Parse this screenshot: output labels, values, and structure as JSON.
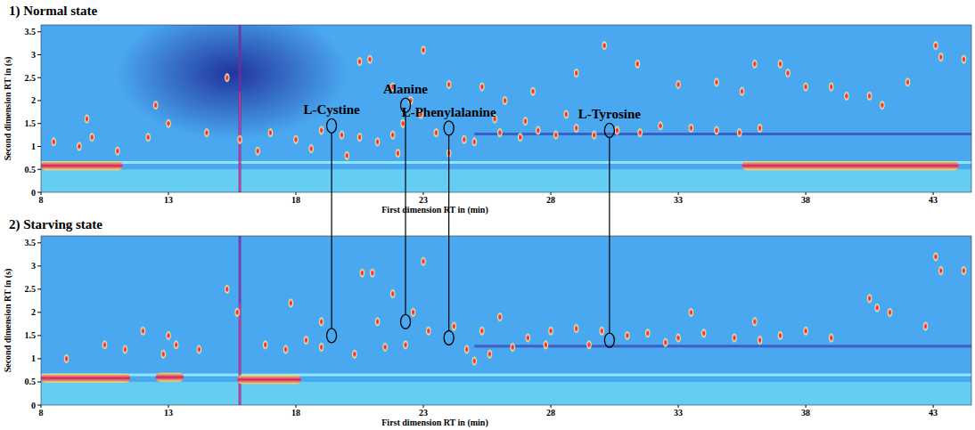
{
  "chart_data": [
    {
      "type": "scatter",
      "title": "1) Normal state",
      "x_label": "First dimension RT in (min)",
      "y_label": "Second dimension RT in (s)",
      "xlim": [
        8,
        44.5
      ],
      "xticks": [
        8,
        13,
        18,
        23,
        28,
        33,
        38,
        43
      ],
      "ylim": [
        0,
        3.65
      ],
      "yticks": [
        0,
        0.5,
        1,
        1.5,
        2,
        2.5,
        3,
        3.5
      ],
      "x": [
        20.5,
        20.9,
        23.0,
        21.8,
        22.5,
        22.9,
        24.0,
        25.3,
        26.2,
        27.3,
        29.0,
        30.1,
        31.4,
        33.0,
        34.5,
        35.5,
        36.2,
        37.3,
        38.0,
        39.0,
        39.6,
        40.5,
        41.0,
        43.1,
        43.3,
        44.2,
        42.0,
        13.0,
        12.5,
        12.2,
        14.5,
        15.3,
        15.8,
        17.0,
        18.0,
        19.0,
        19.8,
        20.5,
        21.2,
        21.8,
        23.5,
        24.6,
        25.0,
        26.0,
        26.8,
        27.5,
        28.2,
        29.0,
        29.7,
        30.6,
        31.5,
        32.3,
        33.5,
        34.5,
        35.4,
        10.0,
        9.5,
        11.0,
        8.5,
        9.8,
        16.5,
        18.6,
        20.0,
        22.0,
        24.0,
        27.0,
        22.2,
        25.8,
        28.6,
        36.0,
        37.0
      ],
      "values": [
        2.85,
        2.9,
        3.1,
        2.3,
        2.0,
        1.7,
        2.35,
        2.3,
        2.0,
        2.2,
        2.6,
        3.2,
        2.8,
        2.35,
        2.4,
        2.2,
        1.4,
        2.6,
        2.3,
        2.3,
        2.1,
        2.1,
        1.9,
        3.2,
        2.95,
        2.9,
        2.4,
        1.5,
        1.9,
        1.2,
        1.3,
        2.5,
        1.15,
        1.3,
        1.15,
        1.35,
        1.25,
        1.2,
        1.1,
        1.25,
        1.3,
        1.15,
        1.1,
        1.3,
        1.2,
        1.35,
        1.25,
        1.4,
        1.25,
        1.35,
        1.3,
        1.45,
        1.4,
        1.35,
        1.3,
        1.2,
        1.0,
        0.9,
        1.1,
        1.6,
        0.9,
        0.95,
        0.8,
        0.85,
        0.85,
        1.55,
        1.5,
        1.6,
        1.7,
        2.8,
        2.8
      ],
      "bands": [
        {
          "x": [
            8,
            11.2
          ],
          "y": 0.58
        },
        {
          "x": [
            35.5,
            44
          ],
          "y": 0.58
        }
      ],
      "streaks": [
        15.8
      ],
      "annotations": [
        {
          "label": "L-Cystine",
          "x": 19.4,
          "y": 1.45
        },
        {
          "label": "Alanine",
          "x": 22.3,
          "y": 1.9
        },
        {
          "label": "L-Phenylalanine",
          "x": 24.0,
          "y": 1.4
        },
        {
          "label": "L-Tyrosine",
          "x": 30.3,
          "y": 1.35
        }
      ]
    },
    {
      "type": "scatter",
      "title": "2) Starving state",
      "x_label": "First dimension RT in (min)",
      "y_label": "Second dimension RT in (s)",
      "xlim": [
        8,
        44.5
      ],
      "xticks": [
        8,
        13,
        18,
        23,
        28,
        33,
        38,
        43
      ],
      "ylim": [
        0,
        3.65
      ],
      "yticks": [
        0,
        0.5,
        1,
        1.5,
        2,
        2.5,
        3,
        3.5
      ],
      "x": [
        20.6,
        21.0,
        23.0,
        21.8,
        22.6,
        23.2,
        24.2,
        25.3,
        26.0,
        27.1,
        28.0,
        29.0,
        30.0,
        31.0,
        31.8,
        33.0,
        34.0,
        35.2,
        36.2,
        37.0,
        38.0,
        39.0,
        40.5,
        40.8,
        41.3,
        42.7,
        43.1,
        43.3,
        44.2,
        15.3,
        15.7,
        13.0,
        13.3,
        12.8,
        14.2,
        16.8,
        17.6,
        18.4,
        19.0,
        20.3,
        21.5,
        22.3,
        24.7,
        25.0,
        25.6,
        26.5,
        27.8,
        29.5,
        32.5,
        9.0,
        10.5,
        11.3,
        12.0,
        17.8,
        19.0,
        21.2,
        33.5,
        36.0
      ],
      "values": [
        2.85,
        2.85,
        3.1,
        2.4,
        2.0,
        1.6,
        1.7,
        1.6,
        1.9,
        1.45,
        1.6,
        1.65,
        1.6,
        1.5,
        1.55,
        1.45,
        1.55,
        1.45,
        1.4,
        1.5,
        1.6,
        1.45,
        2.3,
        2.1,
        2.0,
        1.7,
        3.2,
        2.9,
        2.9,
        2.5,
        2.0,
        1.5,
        1.3,
        1.1,
        1.2,
        1.3,
        1.2,
        1.4,
        1.25,
        1.1,
        1.25,
        1.3,
        1.2,
        0.95,
        1.1,
        1.25,
        1.3,
        1.3,
        1.35,
        1.0,
        1.3,
        1.2,
        1.6,
        2.2,
        1.8,
        1.8,
        2.0,
        1.8
      ],
      "bands": [
        {
          "x": [
            8,
            11.5
          ],
          "y": 0.58
        },
        {
          "x": [
            12.5,
            13.6
          ],
          "y": 0.6
        },
        {
          "x": [
            15.7,
            18.2
          ],
          "y": 0.55
        }
      ],
      "streaks": [
        15.8
      ],
      "annotations": [
        {
          "x": 19.4,
          "y": 1.5
        },
        {
          "x": 22.3,
          "y": 1.8
        },
        {
          "x": 24.0,
          "y": 1.45
        },
        {
          "x": 30.3,
          "y": 1.4
        }
      ]
    }
  ]
}
